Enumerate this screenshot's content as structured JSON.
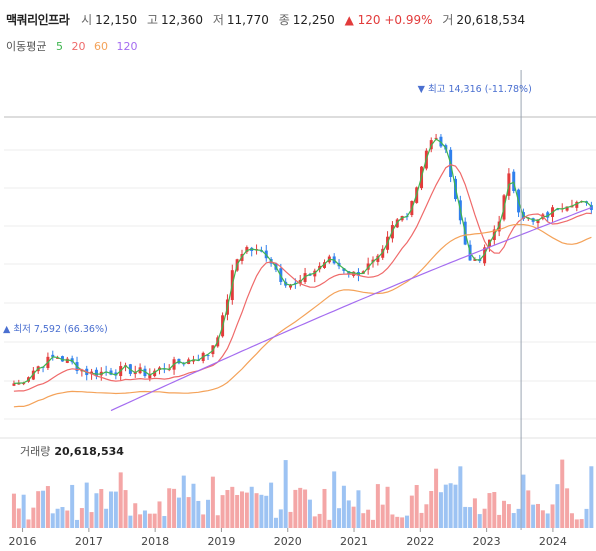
{
  "header": {
    "name": "맥쿼리인프라",
    "open_label": "시",
    "open": "12,150",
    "high_label": "고",
    "high": "12,360",
    "low_label": "저",
    "low": "11,770",
    "close_label": "종",
    "close": "12,250",
    "change": "▲ 120 +0.99%",
    "volume_label": "거",
    "volume": "20,618,534"
  },
  "moving_average_legend": {
    "label": "이동평균",
    "items": [
      {
        "value": "5",
        "color": "#3fb54f"
      },
      {
        "value": "20",
        "color": "#ef6a6a"
      },
      {
        "value": "60",
        "color": "#f4a259"
      },
      {
        "value": "120",
        "color": "#a46cf0"
      }
    ]
  },
  "annotations": {
    "max_label": "▼ 최고 14,316 (-11.78%)",
    "min_label": "▲ 최저 7,592 (66.36%)"
  },
  "volume_panel": {
    "label": "거래량",
    "value": "20,618,534"
  },
  "colors": {
    "up": "#e23b3b",
    "down": "#2f80ed",
    "vol_up": "#f4a6a6",
    "vol_down": "#9dc3f3",
    "grid": "#eeeeee"
  },
  "chart_data": {
    "type": "candlestick",
    "x_ticks": [
      "2016",
      "2017",
      "2018",
      "2019",
      "2020",
      "2021",
      "2022",
      "2023",
      "2024"
    ],
    "ylim": [
      6500,
      15500
    ],
    "series": [
      {
        "name": "close",
        "x": [
          2015.95,
          2016.2,
          2016.5,
          2016.75,
          2017.0,
          2017.3,
          2017.6,
          2017.9,
          2018.2,
          2018.5,
          2018.8,
          2019.0,
          2019.2,
          2019.35,
          2019.5,
          2019.7,
          2019.9,
          2020.1,
          2020.25,
          2020.4,
          2020.6,
          2020.8,
          2021.0,
          2021.2,
          2021.4,
          2021.6,
          2021.8,
          2021.95,
          2022.05,
          2022.2,
          2022.35,
          2022.45,
          2022.55,
          2022.7,
          2022.85,
          2023.0,
          2023.2,
          2023.35,
          2023.5,
          2023.7,
          2023.9,
          2024.1,
          2024.3,
          2024.5
        ],
        "values": [
          7700,
          8100,
          8400,
          8200,
          7950,
          8000,
          8050,
          7950,
          8150,
          8300,
          8450,
          9200,
          10800,
          11200,
          11100,
          11000,
          10400,
          10200,
          10400,
          10600,
          10900,
          10700,
          10500,
          10700,
          10900,
          11800,
          12100,
          12800,
          13600,
          14000,
          13800,
          13200,
          12300,
          11100,
          10700,
          11200,
          12000,
          13100,
          12100,
          11800,
          12000,
          12300,
          12400,
          12250
        ]
      }
    ],
    "extremes": {
      "max": 14316,
      "min": 7592
    }
  }
}
